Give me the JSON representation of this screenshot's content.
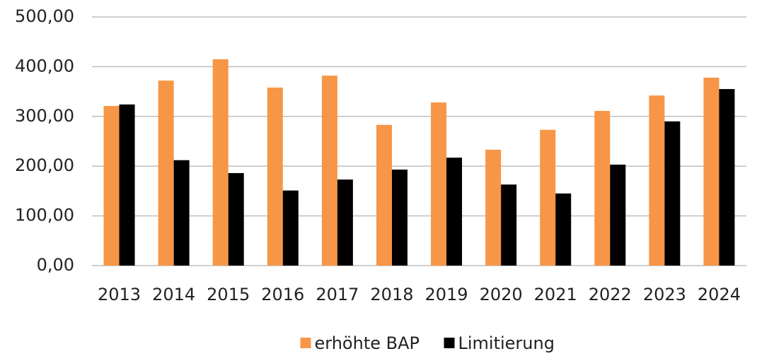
{
  "chart_data": {
    "type": "bar",
    "categories": [
      "2013",
      "2014",
      "2015",
      "2016",
      "2017",
      "2018",
      "2019",
      "2020",
      "2021",
      "2022",
      "2023",
      "2024"
    ],
    "series": [
      {
        "name": "erhöhte BAP",
        "color": "#f79646",
        "values": [
          321,
          372,
          415,
          358,
          382,
          283,
          328,
          233,
          273,
          311,
          342,
          378
        ]
      },
      {
        "name": "Limitierung",
        "color": "#000000",
        "values": [
          324,
          212,
          186,
          151,
          173,
          193,
          217,
          163,
          145,
          203,
          290,
          355
        ]
      }
    ],
    "ylim": [
      0,
      500
    ],
    "yticks": [
      {
        "value": 0,
        "label": "0,00"
      },
      {
        "value": 100,
        "label": "100,00"
      },
      {
        "value": 200,
        "label": "200,00"
      },
      {
        "value": 300,
        "label": "300,00"
      },
      {
        "value": 400,
        "label": "400,00"
      },
      {
        "value": 500,
        "label": "500,00"
      }
    ],
    "grid": true,
    "legend": "bottom"
  }
}
